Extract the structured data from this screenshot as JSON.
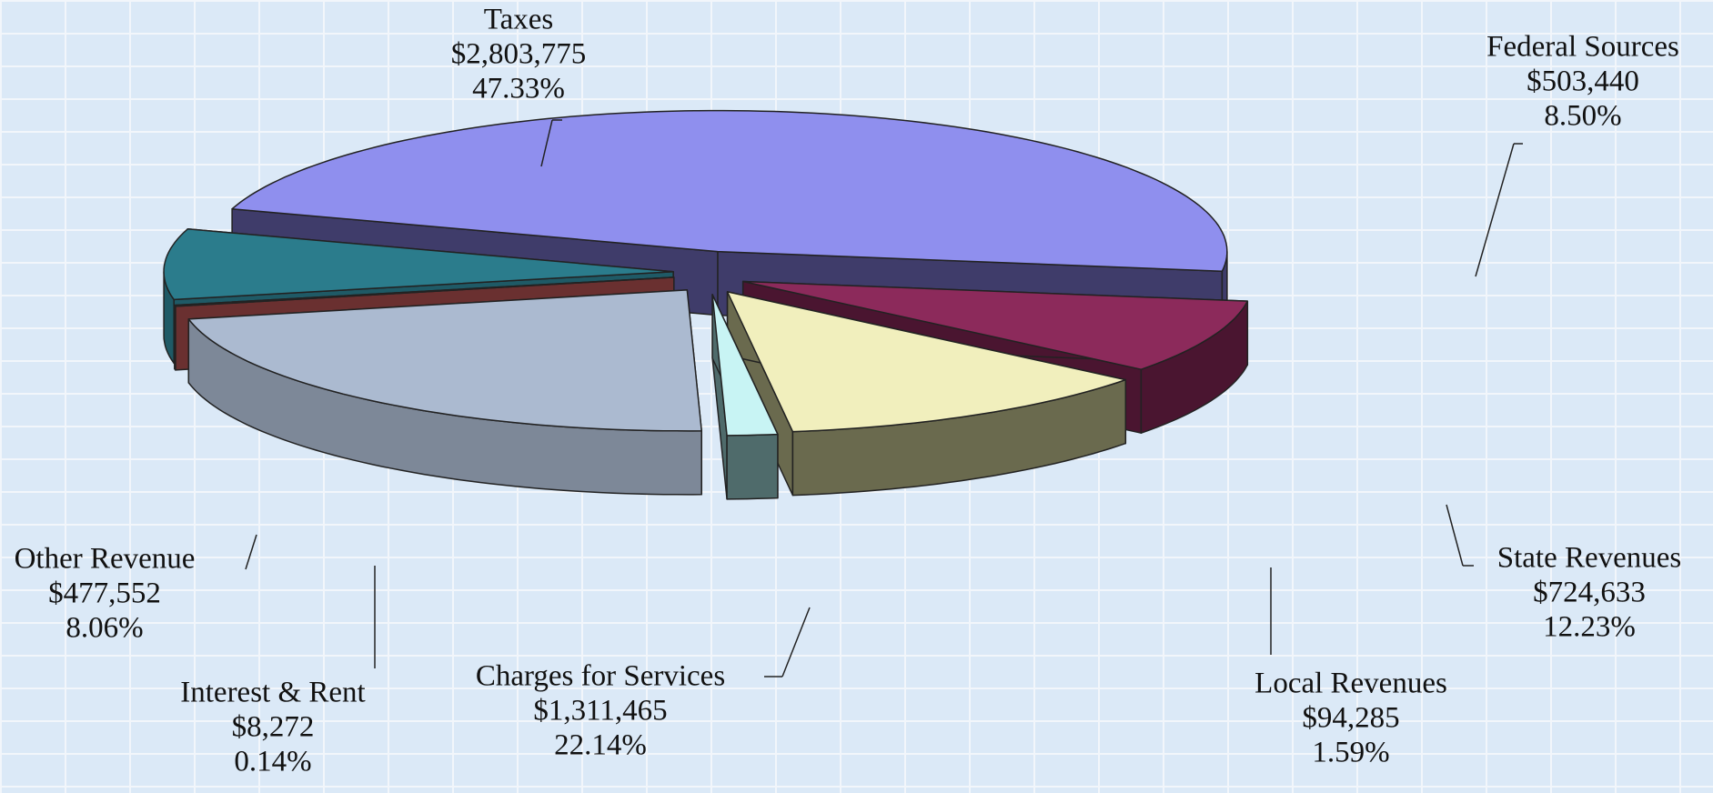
{
  "chart_data": {
    "type": "pie3d",
    "categories": [
      "Taxes",
      "Other Revenue",
      "Interest & Rent",
      "Charges for Services",
      "Local Revenues",
      "State Revenues",
      "Federal Sources"
    ],
    "values": [
      2803775,
      477552,
      8272,
      1311465,
      94285,
      724633,
      503440
    ],
    "value_labels": [
      "$2,803,775",
      "$477,552",
      "$8,272",
      "$1,311,465",
      "$94,285",
      "$724,633",
      "$503,440"
    ],
    "percentages": [
      47.33,
      8.06,
      0.14,
      22.14,
      1.59,
      12.23,
      8.5
    ],
    "percent_labels": [
      "47.33%",
      "8.06%",
      "0.14%",
      "22.14%",
      "1.59%",
      "12.23%",
      "8.50%"
    ],
    "colors": [
      "#8f8fee",
      "#2b7c8c",
      "#8a4242",
      "#abbad0",
      "#c8f4f4",
      "#f1efbd",
      "#8c2a5b"
    ],
    "side_colors": [
      "#3f3c6a",
      "#1f5a66",
      "#6a3030",
      "#7d8898",
      "#4f6b6b",
      "#6a6a4e",
      "#4a1530"
    ]
  }
}
